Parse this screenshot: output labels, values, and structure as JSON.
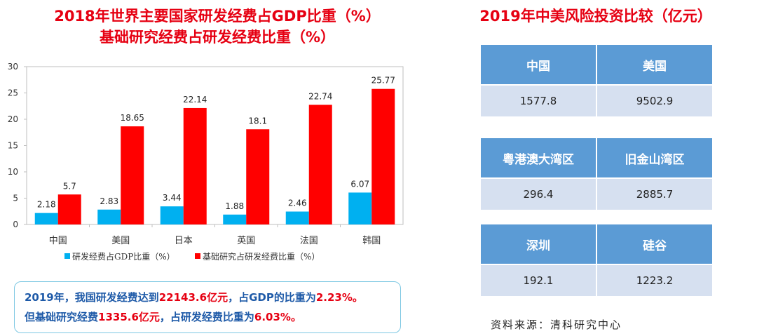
{
  "left_title": {
    "line1": "2018年世界主要国家研发经费占GDP比重（%）",
    "line2": "基础研究经费占研发经费比重（%）"
  },
  "right_title": "2019年中美风险投资比较（亿元）",
  "chart_data": {
    "type": "bar",
    "categories": [
      "中国",
      "美国",
      "日本",
      "英国",
      "法国",
      "韩国"
    ],
    "series": [
      {
        "name": "研发经费占GDP比重（%）",
        "values": [
          2.18,
          2.83,
          3.44,
          1.88,
          2.46,
          6.07
        ],
        "color": "#00b0f0"
      },
      {
        "name": "基础研究占研发经费比重（%）",
        "values": [
          5.7,
          18.65,
          22.14,
          18.1,
          22.74,
          25.77
        ],
        "color": "#ff0000"
      }
    ],
    "value_labels": [
      [
        "2.18",
        "2.83",
        "3.44",
        "1.88",
        "2.46",
        "6.07"
      ],
      [
        "5.7",
        "18.65",
        "22.14",
        "18.1",
        "22.74",
        "25.77"
      ]
    ],
    "y_ticks": [
      "0",
      "5",
      "10",
      "15",
      "20",
      "25",
      "30"
    ],
    "ylim": [
      0,
      30
    ],
    "legend_position": "bottom"
  },
  "note": {
    "l1a": "2019年，我国研发经费达到",
    "l1b": "22143.6亿元",
    "l1c": "，占GDP的比重为",
    "l1d": "2.23%。",
    "l2a": "但基础研究经费",
    "l2b": "1335.6亿元",
    "l2c": "，占研发经费比重为",
    "l2d": "6.03%。"
  },
  "tables": [
    {
      "headers": [
        "中国",
        "美国"
      ],
      "values": [
        "1577.8",
        "9502.9"
      ]
    },
    {
      "headers": [
        "粤港澳大湾区",
        "旧金山湾区"
      ],
      "values": [
        "296.4",
        "2885.7"
      ]
    },
    {
      "headers": [
        "深圳",
        "硅谷"
      ],
      "values": [
        "192.1",
        "1223.2"
      ]
    }
  ],
  "source": "资料来源：清科研究中心",
  "colors": {
    "title": "#e60012",
    "note_text": "#1e5aa8",
    "table_header": "#5b9bd5",
    "table_cell": "#d6e0f0"
  }
}
